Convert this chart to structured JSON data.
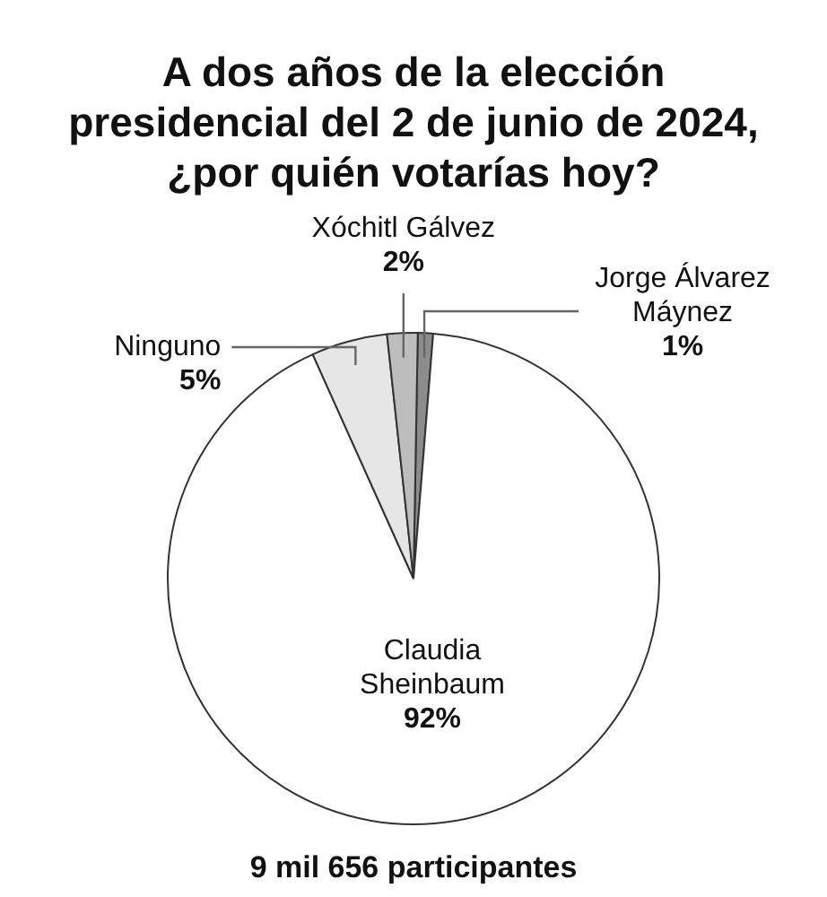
{
  "chart_data": {
    "type": "pie",
    "title": "A dos años de la elección presidencial del 2 de junio de 2024, ¿por quién votarías hoy?",
    "categories": [
      "Jorge Álvarez Máynez",
      "Claudia Sheinbaum",
      "Ninguno",
      "Xóchitl Gálvez"
    ],
    "values": [
      1,
      92,
      5,
      2
    ],
    "colors": [
      "#8c8c8c",
      "#ffffff",
      "#e6e6e6",
      "#bdbdbd"
    ],
    "value_labels": [
      "1%",
      "92%",
      "5%",
      "2%"
    ],
    "legend": false,
    "annotations": [
      "9 mil 656 participantes"
    ]
  }
}
